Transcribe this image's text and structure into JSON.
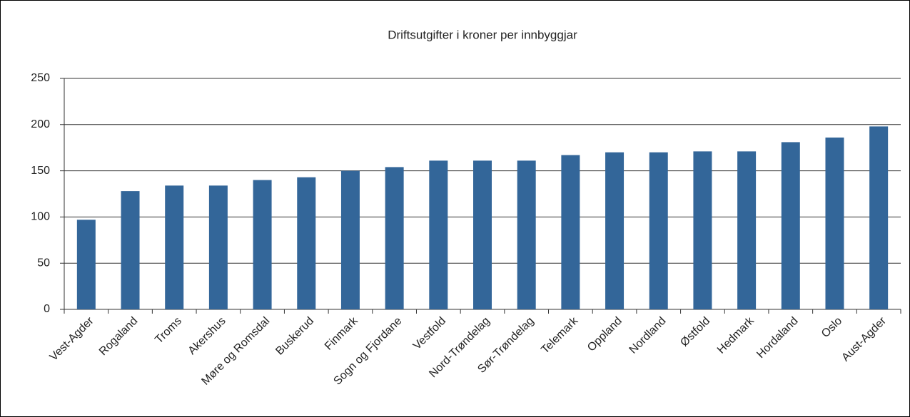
{
  "chart_data": {
    "type": "bar",
    "title": "Driftsutgifter i kroner per innbyggjar",
    "categories": [
      "Vest-Agder",
      "Rogaland",
      "Troms",
      "Akershus",
      "Møre og Romsdal",
      "Buskerud",
      "Finmark",
      "Sogn og Fjordane",
      "Vestfold",
      "Nord-Trøndelag",
      "Sør-Trøndelag",
      "Telemark",
      "Oppland",
      "Nordland",
      "Østfold",
      "Hedmark",
      "Hordaland",
      "Oslo",
      "Aust-Agder"
    ],
    "values": [
      97,
      128,
      134,
      134,
      140,
      143,
      150,
      154,
      161,
      161,
      161,
      167,
      170,
      170,
      171,
      171,
      181,
      186,
      198
    ],
    "color": "#336699",
    "ylim": [
      0,
      250
    ],
    "yticks": [
      0,
      50,
      100,
      150,
      200,
      250
    ],
    "grid": true
  }
}
